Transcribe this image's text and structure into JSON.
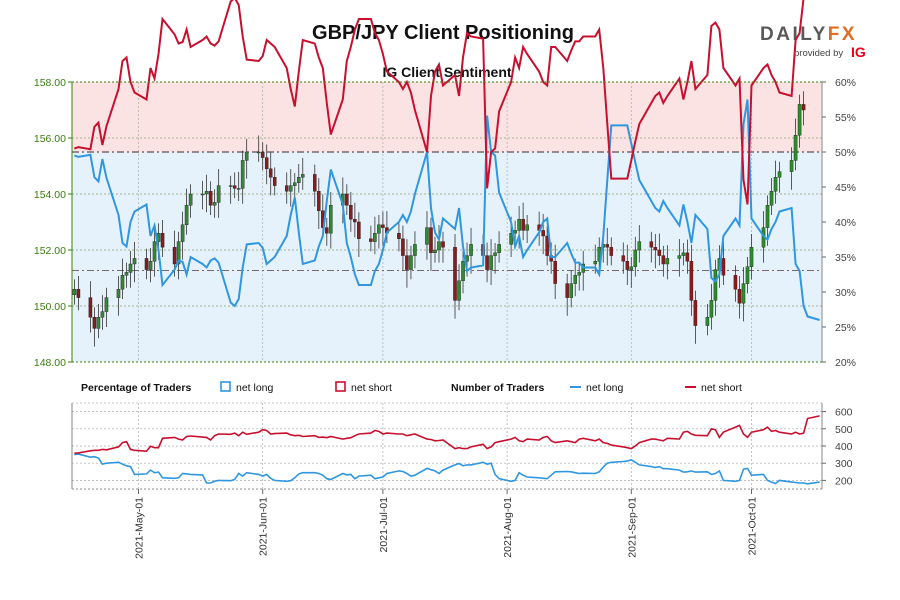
{
  "header": {
    "title": "GBP/JPY Client Positioning",
    "brand_daily": "DAILY",
    "brand_fx": "FX",
    "brand_sub": "provided by",
    "brand_ig": "IG"
  },
  "colors": {
    "net_long": "#2f97e0",
    "net_short": "#c8102e",
    "candle_up": "#2e8b2e",
    "candle_down": "#8b1a1a",
    "short_zone": "#fbe3e3",
    "long_zone": "#e6f2fb",
    "axis_green": "#3a7d0f",
    "reference_line": "#7a6870"
  },
  "chart_data": [
    {
      "type": "line",
      "title": "IG Client Sentiment",
      "dates": [
        "2021-04-15",
        "2021-04-16",
        "2021-04-19",
        "2021-04-20",
        "2021-04-21",
        "2021-04-22",
        "2021-04-23",
        "2021-04-26",
        "2021-04-27",
        "2021-04-28",
        "2021-04-29",
        "2021-04-30",
        "2021-05-03",
        "2021-05-04",
        "2021-05-05",
        "2021-05-06",
        "2021-05-07",
        "2021-05-10",
        "2021-05-11",
        "2021-05-12",
        "2021-05-13",
        "2021-05-14",
        "2021-05-17",
        "2021-05-18",
        "2021-05-19",
        "2021-05-20",
        "2021-05-21",
        "2021-05-24",
        "2021-05-25",
        "2021-05-26",
        "2021-05-27",
        "2021-05-28",
        "2021-05-31",
        "2021-06-01",
        "2021-06-02",
        "2021-06-03",
        "2021-06-04",
        "2021-06-07",
        "2021-06-08",
        "2021-06-09",
        "2021-06-10",
        "2021-06-11",
        "2021-06-14",
        "2021-06-15",
        "2021-06-16",
        "2021-06-17",
        "2021-06-18",
        "2021-06-21",
        "2021-06-22",
        "2021-06-23",
        "2021-06-24",
        "2021-06-25",
        "2021-06-28",
        "2021-06-29",
        "2021-06-30",
        "2021-07-01",
        "2021-07-02",
        "2021-07-05",
        "2021-07-06",
        "2021-07-07",
        "2021-07-08",
        "2021-07-09",
        "2021-07-12",
        "2021-07-13",
        "2021-07-14",
        "2021-07-15",
        "2021-07-16",
        "2021-07-19",
        "2021-07-20",
        "2021-07-21",
        "2021-07-22",
        "2021-07-23",
        "2021-07-26",
        "2021-07-27",
        "2021-07-28",
        "2021-07-29",
        "2021-07-30",
        "2021-08-02",
        "2021-08-03",
        "2021-08-04",
        "2021-08-05",
        "2021-08-06",
        "2021-08-09",
        "2021-08-10",
        "2021-08-11",
        "2021-08-12",
        "2021-08-13",
        "2021-08-16",
        "2021-08-17",
        "2021-08-18",
        "2021-08-19",
        "2021-08-20",
        "2021-08-23",
        "2021-08-24",
        "2021-08-25",
        "2021-08-26",
        "2021-08-27",
        "2021-08-30",
        "2021-08-31",
        "2021-09-01",
        "2021-09-02",
        "2021-09-03",
        "2021-09-06",
        "2021-09-07",
        "2021-09-08",
        "2021-09-09",
        "2021-09-10",
        "2021-09-13",
        "2021-09-14",
        "2021-09-15",
        "2021-09-16",
        "2021-09-17",
        "2021-09-20",
        "2021-09-21",
        "2021-09-22",
        "2021-09-23",
        "2021-09-24",
        "2021-09-27",
        "2021-09-28",
        "2021-09-29",
        "2021-09-30",
        "2021-10-01",
        "2021-10-04",
        "2021-10-05",
        "2021-10-06",
        "2021-10-07",
        "2021-10-08",
        "2021-10-11",
        "2021-10-12",
        "2021-10-13",
        "2021-10-14",
        "2021-10-15",
        "2021-10-18"
      ],
      "price": [
        150.6,
        150.3,
        149.6,
        149.2,
        149.6,
        149.8,
        150.3,
        150.6,
        151.1,
        151.2,
        151.5,
        151.7,
        151.3,
        151.6,
        152.3,
        152.6,
        152.1,
        151.5,
        152.3,
        152.9,
        153.6,
        154.0,
        154.0,
        154.1,
        153.6,
        153.7,
        154.3,
        154.3,
        154.2,
        154.2,
        155.2,
        155.5,
        155.5,
        155.3,
        154.9,
        154.6,
        154.3,
        154.1,
        154.3,
        154.4,
        154.6,
        154.7,
        154.1,
        153.4,
        152.8,
        152.6,
        153.6,
        154.0,
        153.6,
        153.1,
        153.0,
        152.4,
        152.3,
        152.6,
        152.9,
        152.8,
        152.6,
        152.4,
        151.8,
        151.3,
        151.8,
        152.2,
        152.8,
        151.9,
        152.0,
        152.3,
        152.1,
        150.2,
        150.9,
        151.6,
        151.8,
        152.2,
        151.8,
        151.3,
        151.8,
        151.9,
        152.2,
        152.6,
        152.7,
        153.1,
        152.7,
        152.9,
        152.7,
        152.5,
        151.8,
        151.6,
        150.8,
        150.3,
        150.8,
        151.1,
        151.2,
        151.5,
        151.6,
        152.1,
        152.2,
        152.1,
        151.8,
        151.6,
        151.3,
        151.4,
        152.0,
        152.3,
        152.1,
        152.0,
        151.8,
        151.5,
        151.7,
        151.8,
        151.9,
        151.6,
        150.2,
        149.3,
        149.6,
        150.2,
        151.3,
        151.7,
        151.1,
        150.6,
        150.1,
        150.8,
        151.4,
        152.1,
        152.8,
        153.6,
        154.1,
        154.6,
        154.8,
        155.2,
        156.1,
        157.2,
        157.0
      ],
      "ls_ratio_source_units": "percent net long",
      "net_long_pct": [
        49.5,
        49.3,
        49.6,
        46.4,
        45.8,
        49.0,
        46.3,
        41.0,
        37.0,
        36.5,
        40.0,
        41.5,
        42.5,
        38.0,
        39.5,
        36.0,
        31.0,
        33.2,
        34.5,
        34.3,
        32.5,
        35.0,
        34.0,
        33.5,
        34.5,
        34.8,
        34.2,
        28.5,
        28.0,
        29.0,
        33.5,
        36.8,
        37.0,
        36.3,
        34.0,
        34.5,
        35.0,
        38.0,
        41.0,
        43.5,
        38.5,
        34.0,
        34.5,
        36.5,
        38.0,
        43.0,
        47.5,
        42.5,
        37.0,
        35.0,
        32.5,
        31.0,
        31.0,
        33.0,
        34.0,
        36.0,
        38.5,
        40.0,
        41.0,
        40.0,
        41.5,
        44.0,
        50.0,
        42.0,
        38.5,
        37.5,
        40.5,
        39.0,
        42.0,
        36.5,
        33.0,
        33.5,
        33.8,
        55.2,
        50.0,
        49.5,
        44.2,
        40.0,
        36.5,
        38.0,
        35.0,
        36.0,
        38.5,
        40.0,
        40.5,
        35.0,
        35.0,
        37.0,
        35.5,
        34.2,
        34.2,
        33.5,
        33.5,
        32.5,
        38.0,
        46.0,
        53.8,
        53.8,
        53.8,
        51.2,
        48.5,
        46.0,
        43.0,
        42.0,
        41.5,
        43.0,
        42.0,
        39.5,
        42.5,
        40.0,
        37.0,
        41.0,
        39.0,
        32.0,
        31.5,
        32.5,
        38.0,
        40.5,
        39.5,
        54.0,
        57.5,
        40.5,
        38.0,
        37.5,
        39.0,
        40.0,
        41.5,
        42.0,
        34.0,
        33.0,
        28.0,
        26.5,
        26.0,
        26.0,
        24.5
      ],
      "net_short_pct": [
        50.5,
        50.7,
        50.4,
        53.6,
        54.2,
        51.0,
        53.7,
        59.0,
        63.0,
        63.5,
        60.0,
        58.5,
        57.5,
        62.0,
        60.5,
        64.0,
        69.0,
        66.8,
        65.5,
        65.7,
        67.5,
        65.0,
        66.0,
        66.5,
        65.5,
        65.2,
        65.8,
        71.5,
        72.0,
        71.0,
        66.5,
        63.2,
        63.0,
        63.7,
        66.0,
        65.5,
        65.0,
        62.0,
        59.0,
        56.5,
        61.5,
        66.0,
        65.5,
        63.5,
        62.0,
        57.0,
        52.5,
        57.5,
        63.0,
        65.0,
        67.5,
        69.0,
        69.0,
        67.0,
        66.0,
        64.0,
        61.5,
        60.0,
        59.0,
        60.0,
        58.5,
        56.0,
        50.0,
        58.0,
        61.5,
        62.5,
        59.5,
        61.0,
        58.0,
        63.5,
        67.0,
        66.5,
        66.2,
        44.8,
        50.0,
        50.5,
        55.8,
        60.0,
        63.5,
        62.0,
        65.0,
        64.0,
        61.5,
        60.0,
        59.5,
        65.0,
        65.0,
        63.0,
        64.5,
        65.8,
        65.8,
        66.5,
        66.5,
        67.5,
        62.0,
        54.0,
        46.2,
        46.2,
        46.2,
        48.8,
        51.5,
        54.0,
        57.0,
        58.0,
        58.5,
        57.0,
        58.0,
        60.5,
        57.5,
        60.0,
        63.0,
        59.0,
        61.0,
        68.0,
        68.5,
        67.5,
        62.0,
        59.5,
        60.5,
        46.0,
        42.5,
        59.5,
        62.0,
        62.5,
        61.0,
        60.0,
        58.5,
        58.0,
        66.0,
        67.0,
        72.0,
        73.5,
        74.0,
        74.0,
        75.5
      ],
      "yaxis_left": {
        "min": 148,
        "max": 158,
        "ticks": [
          "148.00",
          "150.00",
          "152.00",
          "154.00",
          "156.00",
          "158.00"
        ]
      },
      "yaxis_right": {
        "min": 20,
        "max": 60,
        "ticks": [
          "20%",
          "25%",
          "30%",
          "35%",
          "40%",
          "45%",
          "50%",
          "55%",
          "60%"
        ]
      },
      "reference_lines": {
        "ratio_50_pct": 50,
        "price_level": 151.27
      },
      "grid": true
    },
    {
      "type": "line",
      "dates_ref": "same as panel 1",
      "net_long_traders": [
        350,
        353,
        335,
        338,
        330,
        295,
        300,
        305,
        295,
        285,
        280,
        235,
        238,
        260,
        245,
        248,
        215,
        212,
        215,
        240,
        238,
        235,
        232,
        185,
        185,
        195,
        200,
        198,
        205,
        240,
        225,
        245,
        235,
        225,
        235,
        212,
        200,
        195,
        198,
        215,
        238,
        245,
        245,
        240,
        230,
        210,
        205,
        240,
        232,
        235,
        210,
        225,
        230,
        210,
        215,
        220,
        240,
        255,
        252,
        240,
        225,
        230,
        270,
        262,
        255,
        240,
        260,
        290,
        298,
        285,
        290,
        290,
        305,
        295,
        300,
        235,
        210,
        195,
        200,
        245,
        230,
        220,
        215,
        212,
        210,
        230,
        250,
        252,
        250,
        245,
        240,
        242,
        240,
        250,
        278,
        300,
        305,
        310,
        312,
        320,
        305,
        290,
        280,
        275,
        280,
        268,
        268,
        260,
        248,
        250,
        255,
        248,
        250,
        235,
        240,
        255,
        200,
        195,
        200,
        265,
        270,
        230,
        235,
        200,
        190,
        182,
        200,
        190,
        188,
        185,
        185,
        180,
        190,
        175,
        165,
        160,
        172,
        185
      ],
      "net_short_traders": [
        358,
        360,
        372,
        375,
        375,
        380,
        378,
        395,
        420,
        425,
        380,
        375,
        370,
        398,
        390,
        390,
        445,
        450,
        440,
        435,
        455,
        458,
        452,
        450,
        435,
        460,
        470,
        468,
        475,
        460,
        480,
        468,
        480,
        495,
        490,
        470,
        472,
        475,
        465,
        460,
        462,
        455,
        460,
        450,
        452,
        448,
        455,
        440,
        445,
        448,
        460,
        470,
        475,
        490,
        485,
        470,
        475,
        470,
        470,
        460,
        465,
        470,
        440,
        438,
        430,
        432,
        435,
        385,
        390,
        385,
        385,
        395,
        410,
        385,
        395,
        420,
        425,
        440,
        450,
        430,
        425,
        440,
        435,
        450,
        455,
        430,
        420,
        430,
        425,
        420,
        440,
        445,
        430,
        440,
        420,
        415,
        405,
        395,
        390,
        385,
        400,
        420,
        440,
        440,
        435,
        430,
        445,
        440,
        480,
        485,
        470,
        462,
        460,
        500,
        495,
        450,
        480,
        510,
        520,
        470,
        450,
        480,
        495,
        510,
        485,
        490,
        480,
        470,
        480,
        470,
        475,
        560,
        575,
        590,
        605,
        610,
        600
      ],
      "yaxis_right": {
        "min": 150,
        "max": 650,
        "ticks": [
          "200",
          "300",
          "400",
          "500",
          "600"
        ]
      },
      "grid": true
    }
  ],
  "panel_labels": {
    "pct_heading": "Percentage of Traders",
    "pct_net_long": "net long",
    "pct_net_short": "net short",
    "num_heading": "Number of Traders",
    "num_net_long": "net long",
    "num_net_short": "net short"
  },
  "xaxis": {
    "month_ticks": [
      {
        "date": "2021-05-01",
        "label": "2021-May-01"
      },
      {
        "date": "2021-06-01",
        "label": "2021-Jun-01"
      },
      {
        "date": "2021-07-01",
        "label": "2021-Jul-01"
      },
      {
        "date": "2021-08-01",
        "label": "2021-Aug-01"
      },
      {
        "date": "2021-09-01",
        "label": "2021-Sep-01"
      },
      {
        "date": "2021-10-01",
        "label": "2021-Oct-01"
      }
    ]
  }
}
